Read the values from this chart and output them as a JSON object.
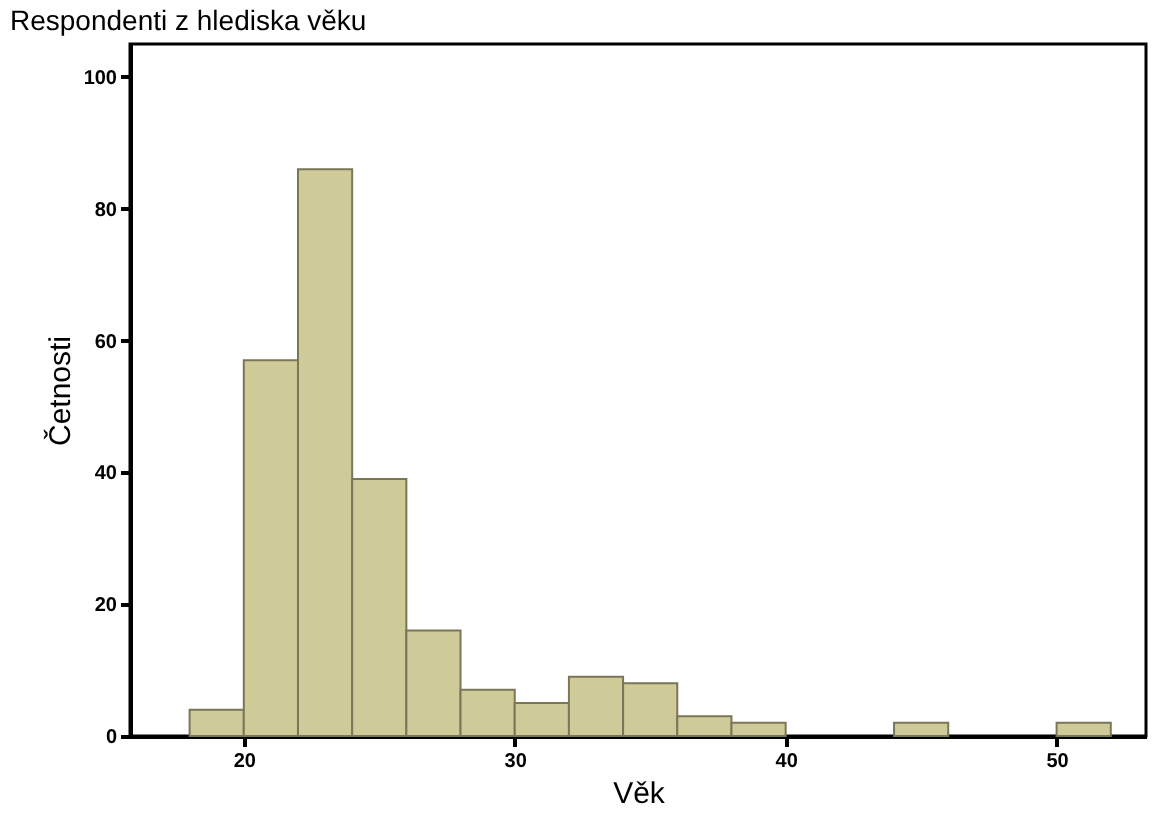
{
  "chart_data": {
    "type": "histogram",
    "title": "Respondenti z hlediska věku",
    "xlabel": "Věk",
    "ylabel": "Četnosti",
    "bins": [
      18,
      20,
      22,
      24,
      26,
      28,
      30,
      32,
      34,
      36,
      38,
      40,
      42,
      44,
      46,
      48,
      50,
      52
    ],
    "values": [
      4,
      57,
      86,
      39,
      16,
      7,
      5,
      9,
      8,
      3,
      2,
      0,
      0,
      2,
      0,
      0,
      2
    ],
    "color": "#cfcb98",
    "xlim": [
      15.8,
      53.3
    ],
    "xticks": [
      20,
      30,
      40,
      50
    ],
    "ylim": [
      0,
      105
    ],
    "yticks": [
      0,
      20,
      40,
      60,
      80,
      100
    ],
    "grid": false
  }
}
